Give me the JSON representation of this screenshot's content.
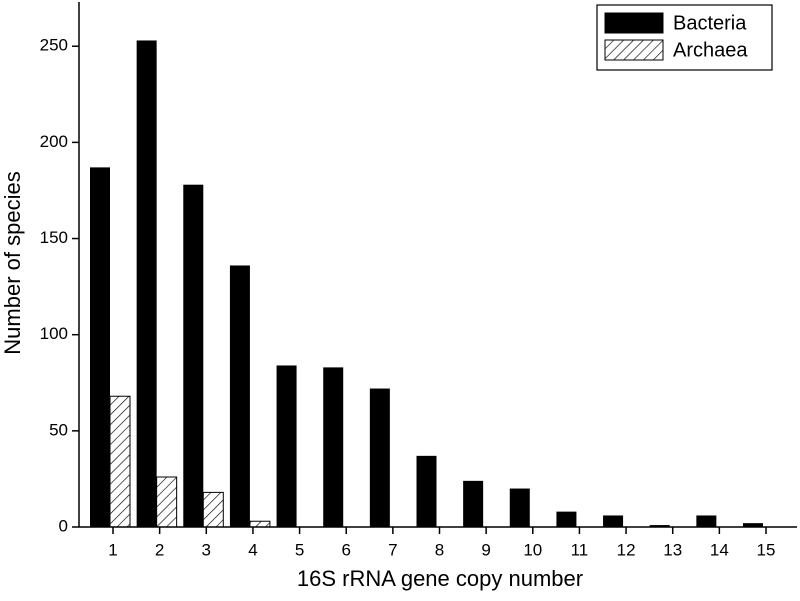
{
  "chart_data": {
    "type": "bar",
    "x_label": "16S rRNA gene copy number",
    "y_label": "Number of species",
    "categories": [
      1,
      2,
      3,
      4,
      5,
      6,
      7,
      8,
      9,
      10,
      11,
      12,
      13,
      14,
      15
    ],
    "series": [
      {
        "name": "Bacteria",
        "color": "#000000",
        "hatch": false,
        "values": [
          187,
          253,
          178,
          136,
          84,
          83,
          72,
          37,
          24,
          20,
          8,
          6,
          1,
          6,
          2
        ]
      },
      {
        "name": "Archaea",
        "color": "#000000",
        "hatch": true,
        "values": [
          68,
          26,
          18,
          3,
          0,
          0,
          0,
          0,
          0,
          0,
          0,
          0,
          0,
          0,
          0
        ]
      }
    ],
    "ylim": [
      0,
      273
    ],
    "yticks": [
      0,
      50,
      100,
      150,
      200,
      250
    ],
    "legend": "upper right"
  }
}
